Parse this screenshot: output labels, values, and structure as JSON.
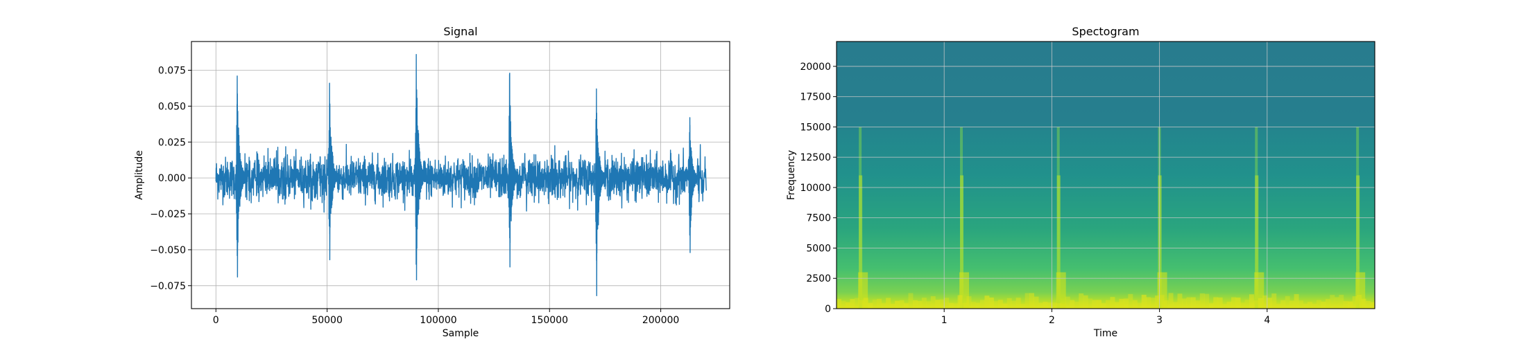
{
  "chart_data": [
    {
      "type": "line",
      "title": "Signal",
      "xlabel": "Sample",
      "ylabel": "Amplitude",
      "xlim": [
        -11000,
        231000
      ],
      "ylim": [
        -0.091,
        0.095
      ],
      "grid": true,
      "line_color": "#1f77b4",
      "x_ticks": [
        {
          "value": 0,
          "label": "0"
        },
        {
          "value": 50000,
          "label": "50000"
        },
        {
          "value": 100000,
          "label": "100000"
        },
        {
          "value": 150000,
          "label": "150000"
        },
        {
          "value": 200000,
          "label": "200000"
        }
      ],
      "y_ticks": [
        {
          "value": 0.075,
          "label": "0.075"
        },
        {
          "value": 0.05,
          "label": "0.050"
        },
        {
          "value": 0.025,
          "label": "0.025"
        },
        {
          "value": 0,
          "label": "0.000"
        },
        {
          "value": -0.025,
          "label": "−0.025"
        },
        {
          "value": -0.05,
          "label": "−0.050"
        },
        {
          "value": -0.075,
          "label": "−0.075"
        }
      ],
      "series": [
        {
          "x_range": [
            0,
            220500
          ],
          "noise_level": 0.013,
          "noise_peak": 0.024,
          "spikes": [
            {
              "x": 9500,
              "max": 0.071,
              "min": -0.069
            },
            {
              "x": 51000,
              "max": 0.066,
              "min": -0.057
            },
            {
              "x": 90000,
              "max": 0.086,
              "min": -0.071
            },
            {
              "x": 132000,
              "max": 0.073,
              "min": -0.062
            },
            {
              "x": 171000,
              "max": 0.062,
              "min": -0.082
            },
            {
              "x": 213000,
              "max": 0.042,
              "min": -0.052
            }
          ]
        }
      ]
    },
    {
      "type": "heatmap",
      "title": "Spectogram",
      "xlabel": "Time",
      "ylabel": "Frequency",
      "xlim": [
        0,
        5.0
      ],
      "ylim": [
        0,
        22050
      ],
      "grid": true,
      "colormap": "viridis",
      "x_ticks": [
        {
          "value": 1,
          "label": "1"
        },
        {
          "value": 2,
          "label": "2"
        },
        {
          "value": 3,
          "label": "3"
        },
        {
          "value": 4,
          "label": "4"
        }
      ],
      "y_ticks": [
        {
          "value": 0,
          "label": "0"
        },
        {
          "value": 2500,
          "label": "2500"
        },
        {
          "value": 5000,
          "label": "5000"
        },
        {
          "value": 7500,
          "label": "7500"
        },
        {
          "value": 10000,
          "label": "10000"
        },
        {
          "value": 12500,
          "label": "12500"
        },
        {
          "value": 15000,
          "label": "15000"
        },
        {
          "value": 17500,
          "label": "17500"
        },
        {
          "value": 20000,
          "label": "20000"
        }
      ],
      "transients_time": [
        0.22,
        1.16,
        2.06,
        3.0,
        3.9,
        4.84
      ]
    }
  ]
}
